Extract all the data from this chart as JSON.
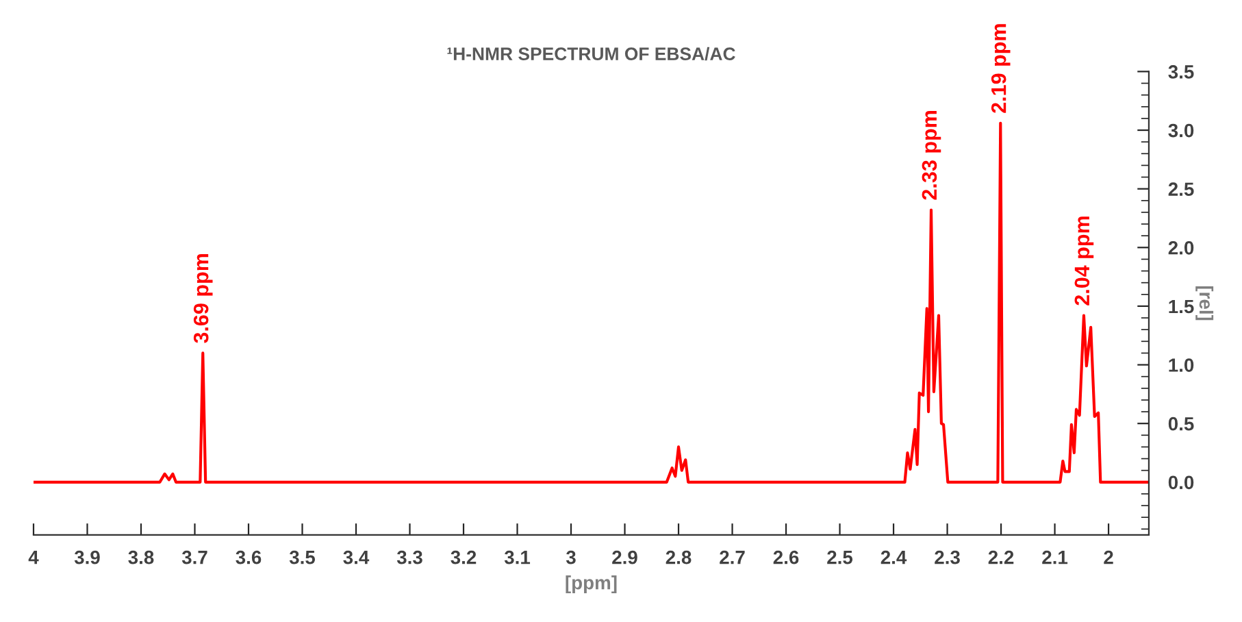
{
  "chart_data": {
    "type": "line",
    "title": "¹H-NMR SPECTRUM OF EBSA/AC",
    "xlabel": "[ppm]",
    "ylabel": "[rel]",
    "x": [
      4.0,
      3.765,
      3.756,
      3.748,
      3.741,
      3.735,
      3.69,
      3.685,
      3.68,
      2.822,
      2.812,
      2.806,
      2.8,
      2.794,
      2.787,
      2.782,
      2.379,
      2.374,
      2.369,
      2.36,
      2.356,
      2.352,
      2.345,
      2.338,
      2.335,
      2.33,
      2.325,
      2.316,
      2.311,
      2.307,
      2.299,
      2.206,
      2.201,
      2.197,
      2.09,
      2.085,
      2.081,
      2.073,
      2.069,
      2.064,
      2.06,
      2.054,
      2.046,
      2.041,
      2.033,
      2.026,
      2.019,
      2.015,
      1.925
    ],
    "series": [
      {
        "color": "#ff0000",
        "values": [
          0,
          0,
          0.07,
          0.02,
          0.07,
          0,
          0,
          1.1,
          0,
          0,
          0.12,
          0.05,
          0.3,
          0.1,
          0.19,
          0,
          0,
          0.25,
          0.11,
          0.45,
          0.15,
          0.76,
          0.74,
          1.48,
          0.6,
          2.32,
          0.77,
          1.42,
          0.5,
          0.49,
          0,
          0,
          3.06,
          0,
          0,
          0.18,
          0.09,
          0.09,
          0.49,
          0.25,
          0.62,
          0.57,
          1.42,
          0.99,
          1.32,
          0.56,
          0.59,
          0,
          0
        ]
      }
    ],
    "xlim": [
      4.0,
      1.925
    ],
    "xticks": [
      4,
      3.9,
      3.8,
      3.7,
      3.6,
      3.5,
      3.4,
      3.3,
      3.2,
      3.1,
      3,
      2.9,
      2.8,
      2.7,
      2.6,
      2.5,
      2.4,
      2.3,
      2.2,
      2.1,
      2
    ],
    "ylim": [
      -0.45,
      3.5
    ],
    "yticks": [
      {
        "value": 0,
        "label": "0.0"
      },
      {
        "value": 0.5,
        "label": "0.5"
      },
      {
        "value": 1,
        "label": "1.0"
      },
      {
        "value": 1.5,
        "label": "1.5"
      },
      {
        "value": 2,
        "label": "2.0"
      },
      {
        "value": 2.5,
        "label": "2.5"
      },
      {
        "value": 3,
        "label": "3.0"
      },
      {
        "value": 3.5,
        "label": "3.5"
      }
    ],
    "grid": false,
    "legend": false,
    "marker": "none",
    "line_style": "solid",
    "annotations": [
      {
        "text": "3.69 ppm",
        "x": 3.685,
        "y": 1.1
      },
      {
        "text": "2.33 ppm",
        "x": 2.33,
        "y": 2.32
      },
      {
        "text": "2.19 ppm",
        "x": 2.201,
        "y": 3.06
      },
      {
        "text": "2.04 ppm",
        "x": 2.046,
        "y": 1.42
      }
    ]
  }
}
